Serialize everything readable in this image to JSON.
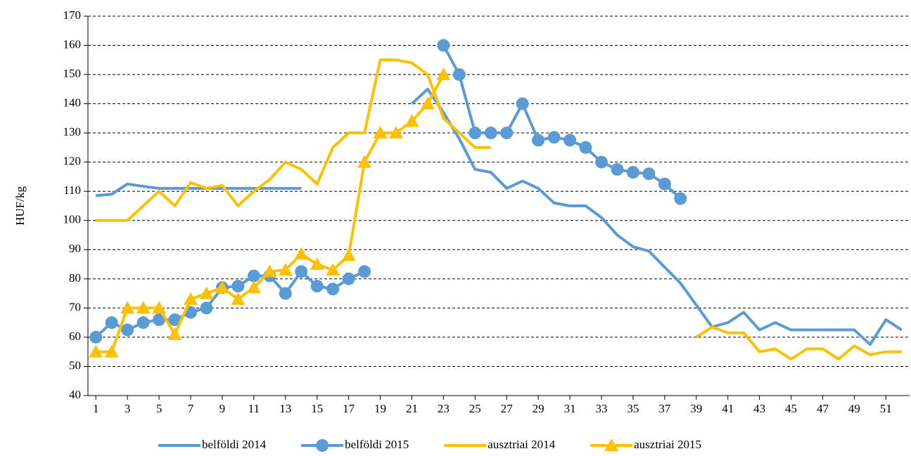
{
  "chart_data": {
    "type": "line",
    "y_label": "HUF/kg",
    "x": [
      1,
      2,
      3,
      4,
      5,
      6,
      7,
      8,
      9,
      10,
      11,
      12,
      13,
      14,
      15,
      16,
      17,
      18,
      19,
      20,
      21,
      22,
      23,
      24,
      25,
      26,
      27,
      28,
      29,
      30,
      31,
      32,
      33,
      34,
      35,
      36,
      37,
      38,
      39,
      40,
      41,
      42,
      43,
      44,
      45,
      46,
      47,
      48,
      49,
      50,
      51,
      52
    ],
    "xlim": [
      0.5,
      52.5
    ],
    "xticks": [
      1,
      3,
      5,
      7,
      9,
      11,
      13,
      15,
      17,
      19,
      21,
      23,
      25,
      27,
      29,
      31,
      33,
      35,
      37,
      39,
      41,
      43,
      45,
      47,
      49,
      51
    ],
    "ylim": [
      40,
      170
    ],
    "yticks": [
      40,
      50,
      60,
      70,
      80,
      90,
      100,
      110,
      120,
      130,
      140,
      150,
      160,
      170
    ],
    "grid": true,
    "legend": "bottom",
    "series": [
      {
        "name": "belföldi 2014",
        "color": "#5b9bd5",
        "values": [
          108.5,
          109,
          112.5,
          111.7,
          111,
          111,
          111,
          111,
          111,
          111,
          111,
          111,
          111,
          111,
          null,
          null,
          null,
          null,
          null,
          null,
          140,
          145,
          137,
          128,
          117.5,
          116.5,
          111,
          113.5,
          111,
          106,
          105,
          105,
          101,
          95,
          91,
          89.5,
          84,
          78.5,
          71,
          63.5,
          65,
          68.5,
          62.5,
          65,
          62.5,
          62.5,
          62.5,
          62.5,
          62.5,
          57.5,
          66,
          62.5
        ]
      },
      {
        "name": "belföldi 2015",
        "color": "#5b9bd5",
        "marker": "circle",
        "values": [
          60,
          65,
          62.5,
          65,
          66,
          66,
          68.5,
          70,
          77,
          77.5,
          81,
          81,
          75,
          82.5,
          77.5,
          76.5,
          80,
          82.5,
          null,
          null,
          null,
          null,
          160,
          150,
          130,
          130,
          130,
          140,
          127.5,
          128.5,
          127.5,
          125,
          120,
          117.5,
          116.5,
          116,
          112.5,
          107.5,
          null,
          null,
          null,
          null,
          null,
          null,
          null,
          null,
          null,
          null,
          null,
          null,
          null,
          null
        ]
      },
      {
        "name": "ausztriai 2014",
        "color": "#ffc000",
        "values": [
          100,
          100,
          100,
          105,
          110,
          105,
          113,
          111,
          112,
          105,
          110,
          114,
          120,
          117.5,
          112.5,
          125,
          130,
          130,
          155,
          155,
          154,
          150,
          135,
          130,
          125,
          125,
          null,
          null,
          null,
          null,
          null,
          null,
          null,
          null,
          null,
          null,
          null,
          null,
          60,
          63.5,
          61.5,
          61.5,
          55,
          56,
          52.5,
          56,
          56,
          52.5,
          57,
          54,
          55,
          55
        ]
      },
      {
        "name": "ausztriai 2015",
        "color": "#ffc000",
        "marker": "triangle",
        "values": [
          55,
          55,
          70,
          70,
          70,
          61,
          73,
          75,
          77,
          73,
          77,
          82.5,
          83,
          88.5,
          85,
          83,
          88,
          120,
          130,
          130,
          134,
          140,
          150,
          null,
          null,
          null,
          null,
          null,
          null,
          null,
          null,
          null,
          null,
          null,
          null,
          null,
          null,
          null,
          null,
          null,
          null,
          null,
          null,
          null,
          null,
          null,
          null,
          null,
          null,
          null,
          null,
          null
        ]
      }
    ]
  }
}
